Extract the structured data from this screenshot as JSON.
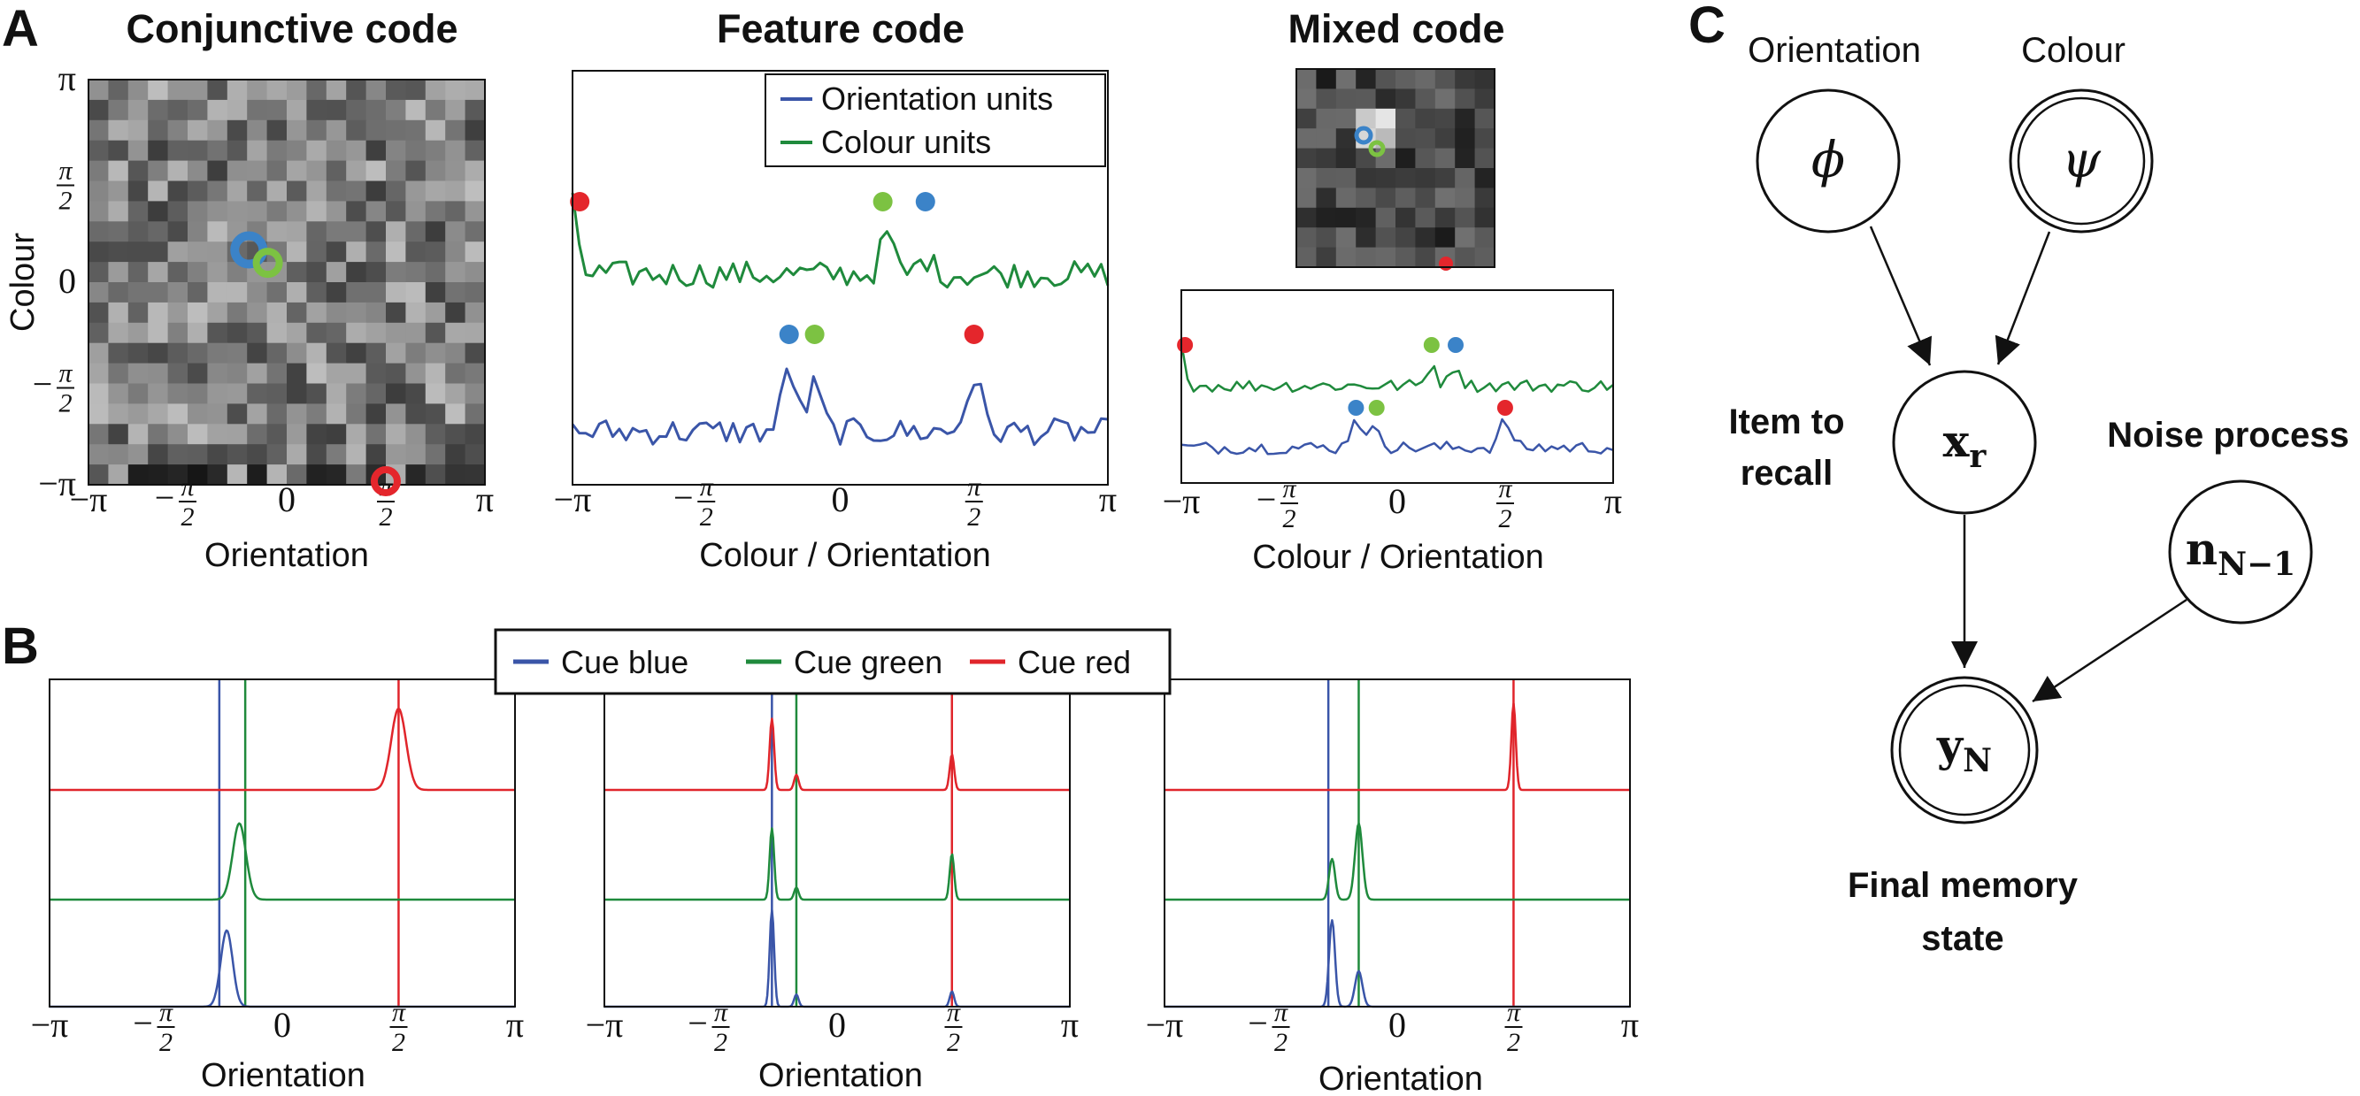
{
  "panel_letters": {
    "a": "A",
    "b": "B",
    "c": "C"
  },
  "colors": {
    "blue": "#3a55a8",
    "green": "#1f8a3c",
    "red": "#e0252b",
    "dot_blue": "#3b83c8",
    "dot_green": "#7cc242",
    "dot_red": "#e4262c"
  },
  "ticks": {
    "neg_pi": "−π",
    "neg_half": "−",
    "half_num": "π",
    "half_den": "2",
    "zero": "0",
    "pos_pi": "π"
  },
  "panel_a": {
    "conjunctive": {
      "title": "Conjunctive code",
      "xlabel": "Orientation",
      "ylabel": "Colour"
    },
    "feature": {
      "title": "Feature code",
      "xlabel": "Colour / Orientation",
      "legend": [
        "Orientation units",
        "Colour units"
      ]
    },
    "mixed": {
      "title": "Mixed code",
      "xlabel": "Colour / Orientation"
    }
  },
  "panel_b": {
    "legend": [
      "Cue blue",
      "Cue green",
      "Cue red"
    ],
    "xlabels": [
      "Orientation",
      "Orientation",
      "Orientation"
    ]
  },
  "panel_c": {
    "node_labels": {
      "orientation": "Orientation",
      "colour": "Colour"
    },
    "phi": "ϕ",
    "psi": "ψ",
    "x_main": "x",
    "x_sub": "r",
    "n_main": "n",
    "n_sub": "N−1",
    "y_main": "y",
    "y_sub": "N",
    "item_to_recall": [
      "Item to",
      "recall"
    ],
    "noise_process": "Noise process",
    "final_memory_state": [
      "Final memory",
      "state"
    ]
  },
  "chart_data": [
    {
      "type": "heatmap",
      "title": "Conjunctive code",
      "xlabel": "Orientation",
      "ylabel": "Colour",
      "xlim": [
        -3.1416,
        3.1416
      ],
      "ylim": [
        -3.1416,
        3.1416
      ],
      "colormap": "gray",
      "markers": [
        {
          "color": "blue",
          "orientation": -0.6,
          "colour": 0.5
        },
        {
          "color": "green",
          "orientation": -0.3,
          "colour": 0.3
        },
        {
          "color": "red",
          "orientation": 1.57,
          "colour": -3.14
        }
      ]
    },
    {
      "type": "line",
      "title": "Feature code",
      "xlabel": "Colour / Orientation",
      "xlim": [
        -3.1416,
        3.1416
      ],
      "series": [
        {
          "name": "Orientation units",
          "color": "blue",
          "peaks": [
            -0.6,
            -0.3,
            1.57
          ]
        },
        {
          "name": "Colour units",
          "color": "green",
          "peaks": [
            -3.14,
            0.5,
            1.0
          ]
        }
      ],
      "markers_orientation": [
        {
          "color": "blue",
          "x": -0.6
        },
        {
          "color": "green",
          "x": -0.3
        },
        {
          "color": "red",
          "x": 1.57
        }
      ],
      "markers_colour": [
        {
          "color": "red",
          "x": -3.14
        },
        {
          "color": "green",
          "x": 0.5
        },
        {
          "color": "blue",
          "x": 1.0
        }
      ]
    },
    {
      "type": "line",
      "title": "Mixed code",
      "xlabel": "Colour / Orientation",
      "xlim": [
        -3.1416,
        3.1416
      ],
      "markers_orientation": [
        {
          "color": "blue",
          "x": -0.6
        },
        {
          "color": "green",
          "x": -0.3
        },
        {
          "color": "red",
          "x": 1.57
        }
      ],
      "markers_colour": [
        {
          "color": "red",
          "x": -3.14
        },
        {
          "color": "green",
          "x": 0.5
        },
        {
          "color": "blue",
          "x": 0.85
        }
      ]
    },
    {
      "type": "line",
      "xlabel": "Orientation",
      "xlim": [
        -3.1416,
        3.1416
      ],
      "series": [
        {
          "name": "Cue blue",
          "color": "blue",
          "peaks": [
            {
              "x": -0.75,
              "h": 0.75,
              "w": 0.08
            }
          ],
          "cue_x": -0.85
        },
        {
          "name": "Cue green",
          "color": "green",
          "peaks": [
            {
              "x": -0.58,
              "h": 0.75,
              "w": 0.09
            }
          ],
          "cue_x": -0.5
        },
        {
          "name": "Cue red",
          "color": "red",
          "peaks": [
            {
              "x": 1.57,
              "h": 0.8,
              "w": 0.1
            }
          ],
          "cue_x": 1.57
        }
      ]
    },
    {
      "type": "line",
      "xlabel": "Orientation",
      "xlim": [
        -3.1416,
        3.1416
      ],
      "series": [
        {
          "name": "Cue blue",
          "color": "blue",
          "peaks": [
            {
              "x": -0.88,
              "h": 0.95,
              "w": 0.03
            },
            {
              "x": -0.55,
              "h": 0.12,
              "w": 0.03
            },
            {
              "x": 1.55,
              "h": 0.15,
              "w": 0.03
            }
          ],
          "cue_x": -0.88
        },
        {
          "name": "Cue green",
          "color": "green",
          "peaks": [
            {
              "x": -0.88,
              "h": 0.7,
              "w": 0.03
            },
            {
              "x": -0.55,
              "h": 0.12,
              "w": 0.03
            },
            {
              "x": 1.55,
              "h": 0.45,
              "w": 0.03
            }
          ],
          "cue_x": -0.55
        },
        {
          "name": "Cue red",
          "color": "red",
          "peaks": [
            {
              "x": -0.88,
              "h": 0.7,
              "w": 0.03
            },
            {
              "x": -0.55,
              "h": 0.15,
              "w": 0.03
            },
            {
              "x": 1.55,
              "h": 0.35,
              "w": 0.03
            }
          ],
          "cue_x": 1.55
        }
      ]
    },
    {
      "type": "line",
      "xlabel": "Orientation",
      "xlim": [
        -3.1416,
        3.1416
      ],
      "series": [
        {
          "name": "Cue blue",
          "color": "blue",
          "peaks": [
            {
              "x": -0.88,
              "h": 0.85,
              "w": 0.04
            },
            {
              "x": -0.52,
              "h": 0.35,
              "w": 0.05
            }
          ],
          "cue_x": -0.93
        },
        {
          "name": "Cue green",
          "color": "green",
          "peaks": [
            {
              "x": -0.88,
              "h": 0.4,
              "w": 0.04
            },
            {
              "x": -0.52,
              "h": 0.75,
              "w": 0.05
            }
          ],
          "cue_x": -0.52
        },
        {
          "name": "Cue red",
          "color": "red",
          "peaks": [
            {
              "x": 1.57,
              "h": 0.85,
              "w": 0.03
            }
          ],
          "cue_x": 1.57
        }
      ]
    }
  ]
}
